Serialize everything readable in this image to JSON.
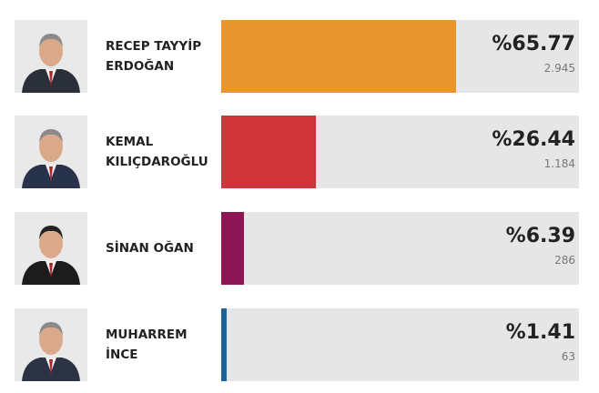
{
  "chart_data": {
    "type": "bar",
    "orientation": "horizontal",
    "categories": [
      "RECEP TAYYİP ERDOĞAN",
      "KEMAL KILIÇDAROĞLU",
      "SİNAN OĞAN",
      "MUHARREM İNCE"
    ],
    "values": [
      65.77,
      26.44,
      6.39,
      1.41
    ],
    "value_labels": [
      "%65.77",
      "%26.44",
      "%6.39",
      "%1.41"
    ],
    "votes": [
      2945,
      1184,
      286,
      63
    ],
    "vote_labels": [
      "2.945",
      "1.184",
      "286",
      "63"
    ],
    "colors": [
      "#e8952e",
      "#d0353b",
      "#8d1655",
      "#1c64a0"
    ],
    "xlim": [
      0,
      100
    ]
  }
}
